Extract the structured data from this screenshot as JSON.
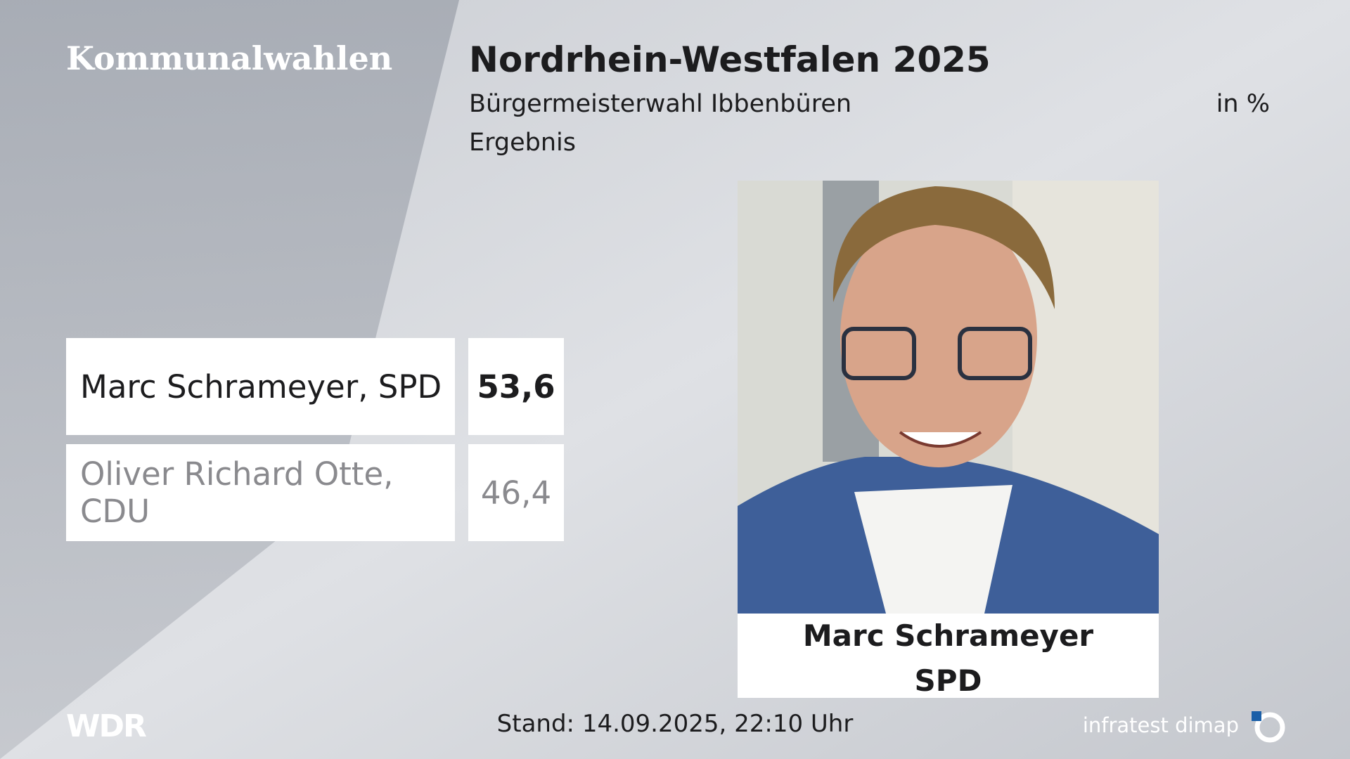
{
  "header": {
    "category": "Kommunalwahlen",
    "title": "Nordrhein-Westfalen 2025",
    "subtitle": "Bürgermeisterwahl Ibbenbüren",
    "unit": "in %",
    "stage": "Ergebnis"
  },
  "results": [
    {
      "name": "Marc Schrameyer, SPD",
      "value": "53,6"
    },
    {
      "name": "Oliver Richard Otte, CDU",
      "value": "46,4"
    }
  ],
  "winner": {
    "name": "Marc Schrameyer",
    "party": "SPD"
  },
  "footer": {
    "broadcaster": "WDR",
    "status": "Stand: 14.09.2025, 22:10 Uhr",
    "source": "infratest dimap"
  }
}
